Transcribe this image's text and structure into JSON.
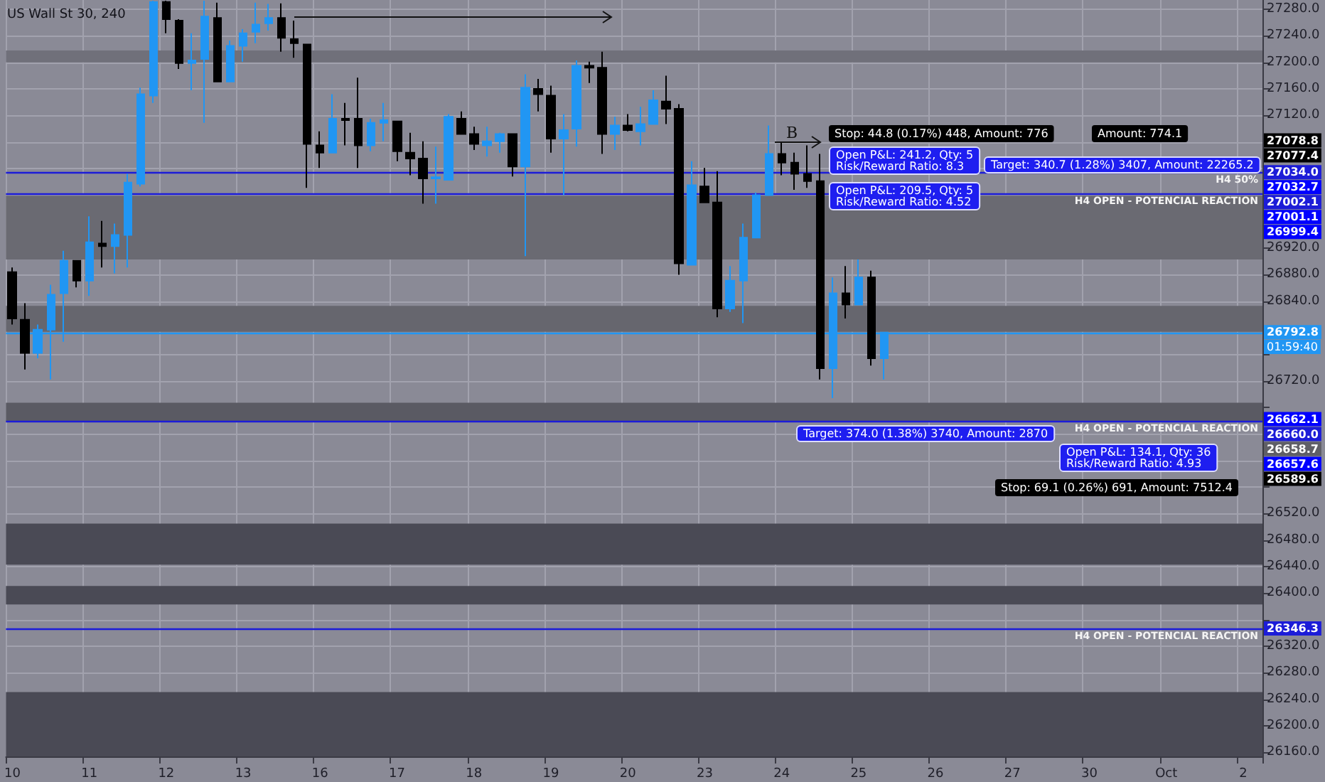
{
  "chart_data": {
    "type": "candlestick",
    "title": "US Wall St 30, 240",
    "categories": [
      "10",
      null,
      null,
      null,
      null,
      null,
      "11",
      null,
      null,
      null,
      null,
      null,
      "12",
      null,
      null,
      null,
      null,
      null,
      "13",
      null,
      null,
      null,
      null,
      null,
      "16",
      null,
      null,
      null,
      null,
      null,
      "17",
      null,
      null,
      null,
      null,
      null,
      "18",
      null,
      null,
      null,
      null,
      null,
      "19",
      null,
      null,
      null,
      null,
      null,
      "20",
      null,
      null,
      null,
      null,
      null,
      "23",
      null,
      null,
      null,
      null,
      null,
      "24",
      null,
      null,
      null,
      null,
      null,
      "25",
      null,
      null,
      null,
      null,
      null,
      "26",
      null,
      null,
      null,
      null,
      null,
      "27",
      null,
      null,
      null,
      null,
      null,
      "30",
      null,
      null,
      null,
      null,
      null,
      "Oct",
      null,
      null,
      null,
      null,
      null,
      "2",
      null
    ],
    "ohlc": [
      [
        26884,
        26891,
        26805,
        26814
      ],
      [
        26812,
        26837,
        26737,
        26762
      ],
      [
        26762,
        26805,
        26754,
        26797
      ],
      [
        26797,
        26865,
        26722,
        26850
      ],
      [
        26852,
        26916,
        26779,
        26901
      ],
      [
        26901,
        26901,
        26861,
        26871
      ],
      [
        26871,
        26968,
        26848,
        26929
      ],
      [
        26927,
        26961,
        26891,
        26923
      ],
      [
        26923,
        26957,
        26882,
        26940
      ],
      [
        26940,
        27032,
        26891,
        27019
      ],
      [
        27017,
        27162,
        27013,
        27152
      ],
      [
        27150,
        27293,
        27139,
        27291
      ],
      [
        27291,
        27293,
        27244,
        27265
      ],
      [
        27263,
        27265,
        27190,
        27199
      ],
      [
        27199,
        27244,
        27158,
        27203
      ],
      [
        27205,
        27293,
        27109,
        27269
      ],
      [
        27267,
        27290,
        27171,
        27171
      ],
      [
        27171,
        27233,
        27171,
        27225
      ],
      [
        27225,
        27250,
        27201,
        27244
      ],
      [
        27246,
        27290,
        27229,
        27257
      ],
      [
        27259,
        27288,
        27248,
        27267
      ],
      [
        27267,
        27289,
        27216,
        27237
      ],
      [
        27235,
        27263,
        27207,
        27229
      ],
      [
        27227,
        27227,
        27011,
        27077
      ],
      [
        27075,
        27096,
        27041,
        27064
      ],
      [
        27064,
        27152,
        27064,
        27115
      ],
      [
        27115,
        27139,
        27075,
        27113
      ],
      [
        27115,
        27177,
        27041,
        27075
      ],
      [
        27075,
        27115,
        27066,
        27109
      ],
      [
        27109,
        27139,
        27081,
        27113
      ],
      [
        27111,
        27111,
        27051,
        27066
      ],
      [
        27064,
        27094,
        27030,
        27055
      ],
      [
        27055,
        27081,
        26987,
        27025
      ],
      [
        27025,
        27073,
        26987,
        27027
      ],
      [
        27023,
        27122,
        27023,
        27118
      ],
      [
        27115,
        27126,
        27092,
        27092
      ],
      [
        27092,
        27103,
        27068,
        27077
      ],
      [
        27075,
        27103,
        27058,
        27081
      ],
      [
        27081,
        27094,
        27064,
        27092
      ],
      [
        27092,
        27092,
        27028,
        27043
      ],
      [
        27043,
        27182,
        26908,
        27162
      ],
      [
        27160,
        27175,
        27126,
        27152
      ],
      [
        27150,
        27165,
        27064,
        27085
      ],
      [
        27085,
        27122,
        27000,
        27098
      ],
      [
        27100,
        27203,
        27073,
        27195
      ],
      [
        27195,
        27201,
        27169,
        27192
      ],
      [
        27192,
        27216,
        27062,
        27092
      ],
      [
        27092,
        27118,
        27068,
        27105
      ],
      [
        27105,
        27122,
        27096,
        27098
      ],
      [
        27096,
        27133,
        27075,
        27107
      ],
      [
        27107,
        27158,
        27107,
        27143
      ],
      [
        27141,
        27180,
        27107,
        27130
      ],
      [
        27130,
        27137,
        26880,
        26897
      ],
      [
        26895,
        27051,
        26895,
        27015
      ],
      [
        27013,
        27041,
        26989,
        26989
      ],
      [
        26989,
        27036,
        26816,
        26829
      ],
      [
        26829,
        26893,
        26824,
        26871
      ],
      [
        26871,
        26957,
        26807,
        26936
      ],
      [
        26936,
        27004,
        26936,
        27000
      ],
      [
        27000,
        27105,
        27000,
        27062
      ],
      [
        27062,
        27079,
        27030,
        27049
      ],
      [
        27049,
        27064,
        27008,
        27032
      ],
      [
        27032,
        27075,
        27011,
        27021
      ],
      [
        27021,
        27062,
        26722,
        26739
      ],
      [
        26739,
        26876,
        26694,
        26852
      ],
      [
        26852,
        26893,
        26814,
        26835
      ],
      [
        26835,
        26903,
        26835,
        26876
      ],
      [
        26876,
        26886,
        26743,
        26754
      ],
      [
        26754,
        26794,
        26722,
        26792.8
      ],
      null,
      null,
      null,
      null,
      null,
      null,
      null,
      null,
      null,
      null,
      null,
      null,
      null,
      null,
      null,
      null,
      null,
      null,
      null,
      null,
      null,
      null,
      null,
      null,
      null,
      null,
      null,
      null,
      null
    ],
    "colors": [
      "#000000",
      "#000000",
      "#2196f3",
      "#2196f3",
      "#2196f3",
      "#000000",
      "#2196f3",
      "#000000",
      "#2196f3",
      "#2196f3",
      "#2196f3",
      "#2196f3",
      "#000000",
      "#000000",
      "#2196f3",
      "#2196f3",
      "#000000",
      "#2196f3",
      "#2196f3",
      "#2196f3",
      "#2196f3",
      "#000000",
      "#000000",
      "#000000",
      "#000000",
      "#2196f3",
      "#000000",
      "#000000",
      "#2196f3",
      "#2196f3",
      "#000000",
      "#000000",
      "#000000",
      "#2196f3",
      "#2196f3",
      "#000000",
      "#000000",
      "#2196f3",
      "#2196f3",
      "#000000",
      "#2196f3",
      "#000000",
      "#000000",
      "#2196f3",
      "#2196f3",
      "#000000",
      "#000000",
      "#2196f3",
      "#000000",
      "#2196f3",
      "#2196f3",
      "#000000",
      "#000000",
      "#2196f3",
      "#000000",
      "#000000",
      "#2196f3",
      "#2196f3",
      "#2196f3",
      "#2196f3",
      "#000000",
      "#000000",
      "#000000",
      "#000000",
      "#2196f3",
      "#000000",
      "#2196f3",
      "#000000",
      "#2196f3",
      null,
      null,
      null,
      null,
      null,
      null,
      null,
      null,
      null,
      null,
      null,
      null,
      null,
      null,
      null,
      null,
      null,
      null,
      null,
      null,
      null,
      null,
      null,
      null,
      null,
      null,
      null,
      null,
      null
    ],
    "ylim": [
      26154,
      27294
    ],
    "yticks": [
      {
        "value": 26160,
        "label": "26160.0"
      },
      {
        "value": 26200,
        "label": "26200.0"
      },
      {
        "value": 26240,
        "label": "26240.0"
      },
      {
        "value": 26280,
        "label": "26280.0"
      },
      {
        "value": 26320,
        "label": "26320.0"
      },
      {
        "value": 26360,
        "label": null
      },
      {
        "value": 26400,
        "label": "26400.0"
      },
      {
        "value": 26440,
        "label": "26440.0"
      },
      {
        "value": 26480,
        "label": "26480.0"
      },
      {
        "value": 26520,
        "label": "26520.0"
      },
      {
        "value": 26560,
        "label": null
      },
      {
        "value": 26600,
        "label": null
      },
      {
        "value": 26640,
        "label": null
      },
      {
        "value": 26680,
        "label": null
      },
      {
        "value": 26720,
        "label": "26720.0"
      },
      {
        "value": 26760,
        "label": null
      },
      {
        "value": 26800,
        "label": null
      },
      {
        "value": 26840,
        "label": "26840.0"
      },
      {
        "value": 26880,
        "label": "26880.0"
      },
      {
        "value": 26920,
        "label": "26920.0"
      },
      {
        "value": 26960,
        "label": null
      },
      {
        "value": 27000,
        "label": null
      },
      {
        "value": 27040,
        "label": null
      },
      {
        "value": 27080,
        "label": null
      },
      {
        "value": 27120,
        "label": "27120.0"
      },
      {
        "value": 27160,
        "label": "27160.0"
      },
      {
        "value": 27200,
        "label": "27200.0"
      },
      {
        "value": 27240,
        "label": "27240.0"
      },
      {
        "value": 27280,
        "label": "27280.0"
      }
    ],
    "grid": true,
    "ref_lines": [
      {
        "axis": "y",
        "value": 27034.0,
        "label": "27034.0",
        "color": "#1c1cd8"
      },
      {
        "axis": "y",
        "value": 27002.1,
        "label": "27002.1",
        "color": "#1c1cd8"
      },
      {
        "axis": "y",
        "value": 26792.8,
        "label": "26792.8",
        "color": "#2196f3"
      },
      {
        "axis": "y",
        "value": 26660.0,
        "label": "26660.0",
        "color": "#1c1cd8"
      },
      {
        "axis": "y",
        "value": 26346.3,
        "label": "26346.3",
        "color": "#1c1cd8"
      }
    ],
    "bands": [
      {
        "axis": "y",
        "from": 27200,
        "to": 27218,
        "color": "#70707a"
      },
      {
        "axis": "y",
        "from": 26903,
        "to": 26999,
        "color": "#6a6a72"
      },
      {
        "axis": "y",
        "from": 26794,
        "to": 26833,
        "color": "#66666e"
      },
      {
        "axis": "y",
        "from": 26658,
        "to": 26687,
        "color": "#5a5a63"
      },
      {
        "axis": "y",
        "from": 26443,
        "to": 26505,
        "color": "#4a4a55"
      },
      {
        "axis": "y",
        "from": 26383,
        "to": 26411,
        "color": "#4a4a55"
      },
      {
        "axis": "y",
        "from": 26154,
        "to": 26251,
        "color": "#4a4a55"
      }
    ],
    "annotations": [
      "Stop: 44.8 (0.17%) 448, Amount: 776",
      "Amount: 774.1",
      "Open P&L: 241.2, Qty: 5\nRisk/Reward Ratio: 8.3",
      "Target: 340.7 (1.28%) 3407, Amount: 22265.2",
      "Open P&L: 209.5, Qty: 5\nRisk/Reward Ratio: 4.52",
      "Target: 374.0 (1.38%) 3740, Amount: 2870",
      "Open P&L: 134.1, Qty: 36\nRisk/Reward Ratio: 4.93",
      "Stop: 69.1 (0.26%) 691, Amount: 7512.4",
      "B",
      "01:59:40",
      "H4 50%",
      "H4 OPEN - POTENCIAL REACTION",
      "H4 OPEN - POTENCIAL REACTION",
      "H4 OPEN - POTENCIAL REACTION",
      "27078.8",
      "27077.4",
      "27032.7",
      "27001.1",
      "26999.4",
      "26662.1",
      "26658.7",
      "26657.6",
      "26589.6"
    ]
  }
}
